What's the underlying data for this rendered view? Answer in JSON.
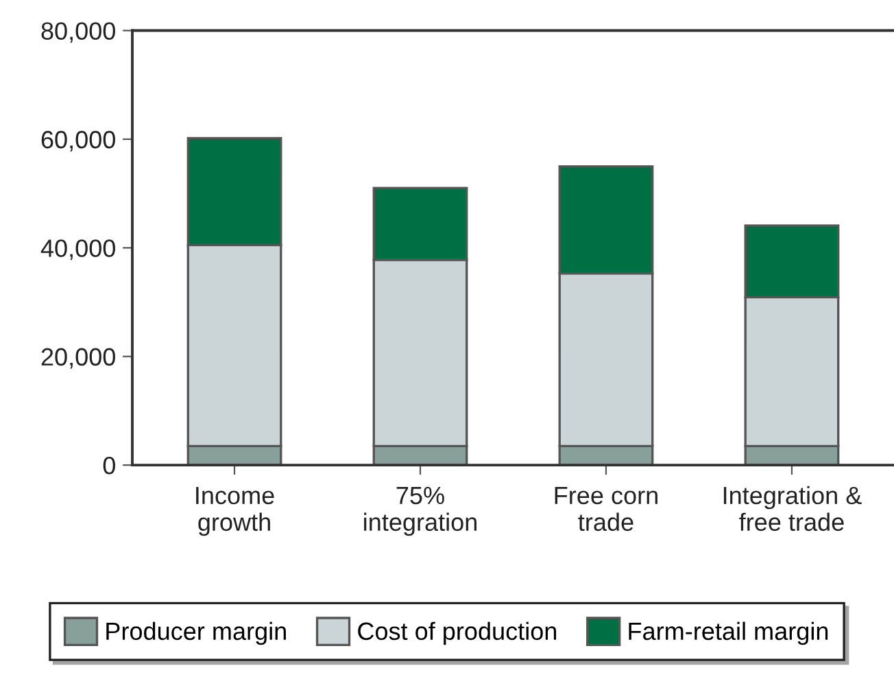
{
  "chart_data": {
    "type": "bar",
    "stacked": true,
    "categories": [
      "Income\ngrowth",
      "75%\nintegration",
      "Free corn\ntrade",
      "Integration &\nfree trade"
    ],
    "series": [
      {
        "name": "Producer margin",
        "color": "#87a09a",
        "values": [
          3500,
          3500,
          3500,
          3500
        ]
      },
      {
        "name": "Cost of production",
        "color": "#cbd5d8",
        "values": [
          37000,
          34300,
          31800,
          27400
        ]
      },
      {
        "name": "Farm-retail margin",
        "color": "#006f44",
        "values": [
          19700,
          13200,
          19700,
          13200
        ]
      }
    ],
    "ylim": [
      0,
      80000
    ],
    "yticks": [
      {
        "value": 0,
        "label": "0"
      },
      {
        "value": 20000,
        "label": "20,000"
      },
      {
        "value": 40000,
        "label": "40,000"
      },
      {
        "value": 60000,
        "label": "60,000"
      },
      {
        "value": 80000,
        "label": "80,000"
      }
    ],
    "grid": false,
    "legend": "bottom"
  }
}
